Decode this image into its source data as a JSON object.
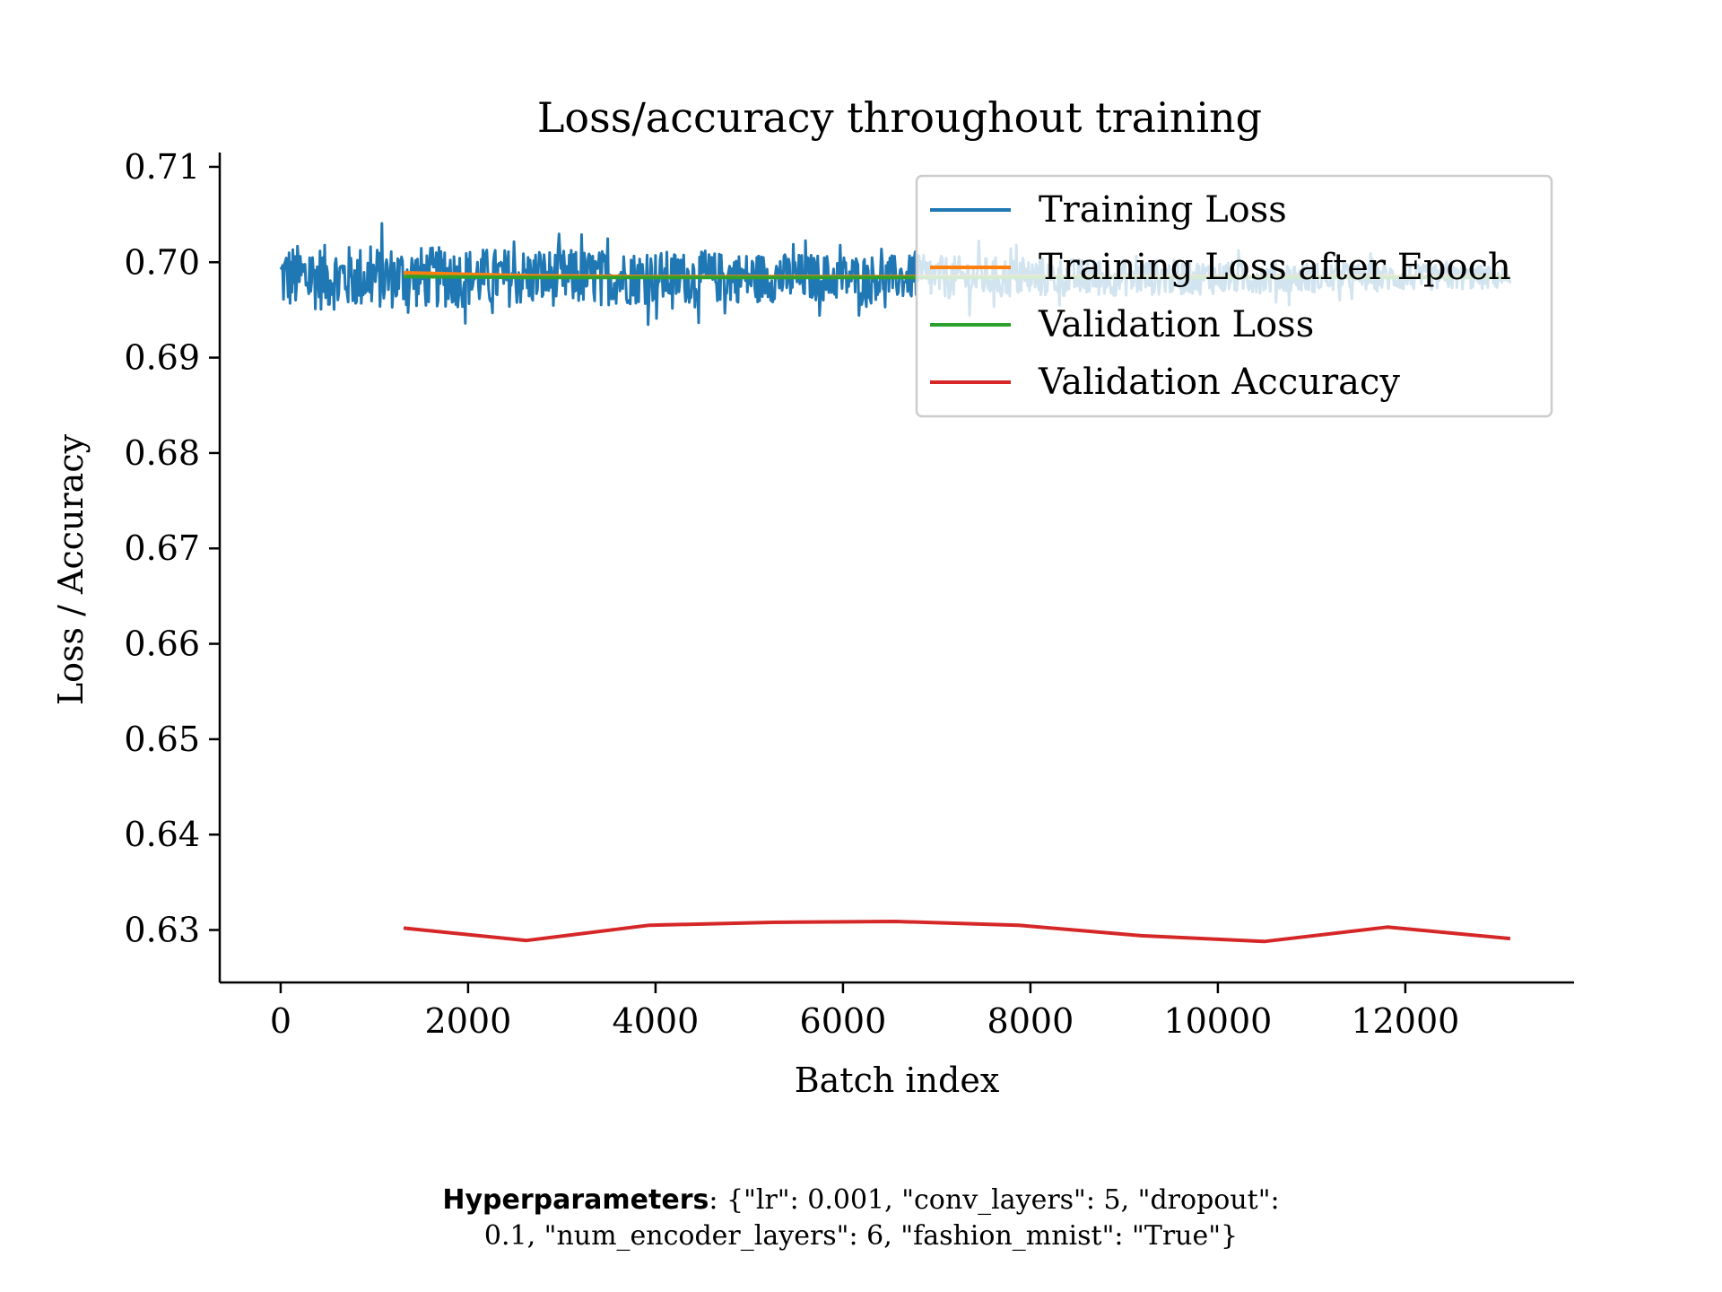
{
  "chart_data": {
    "type": "line",
    "title": "Loss/accuracy throughout training",
    "xlabel": "Batch index",
    "ylabel": "Loss / Accuracy",
    "xlim": [
      -650,
      13800
    ],
    "ylim": [
      0.6245,
      0.7115
    ],
    "xticks": [
      0,
      2000,
      4000,
      6000,
      8000,
      10000,
      12000
    ],
    "yticks": [
      0.63,
      0.64,
      0.65,
      0.66,
      0.67,
      0.68,
      0.69,
      0.7,
      0.71
    ],
    "ytick_labels": [
      "0.63",
      "0.64",
      "0.65",
      "0.66",
      "0.67",
      "0.68",
      "0.69",
      "0.70",
      "0.71"
    ],
    "grid": false,
    "legend_position": "top-right",
    "series": [
      {
        "name": "Training Loss",
        "color": "#1f77b4",
        "style": "noisy",
        "x_range": [
          0,
          13120
        ],
        "center": 0.6984,
        "amplitude_start": 0.0035,
        "amplitude_end": 0.0012,
        "peak_max": 0.7069,
        "peak_min": 0.6931
      },
      {
        "name": "Training Loss after Epoch",
        "color": "#ff7f0e",
        "x": [
          1312,
          2624,
          3936,
          5248,
          6560,
          7872,
          9184,
          10496,
          11808,
          13120
        ],
        "values": [
          0.6989,
          0.6986,
          0.6985,
          0.6985,
          0.6985,
          0.6985,
          0.6985,
          0.6985,
          0.6985,
          0.6985
        ]
      },
      {
        "name": "Validation Loss",
        "color": "#2ca02c",
        "x": [
          1312,
          2624,
          3936,
          5248,
          6560,
          7872,
          9184,
          10496,
          11808,
          13120
        ],
        "values": [
          0.6985,
          0.6984,
          0.6984,
          0.6984,
          0.6984,
          0.6984,
          0.6984,
          0.6984,
          0.6984,
          0.6984
        ]
      },
      {
        "name": "Validation Accuracy",
        "color": "#d62728",
        "x": [
          1312,
          2624,
          3936,
          5248,
          6560,
          7872,
          9184,
          10496,
          11808,
          13120
        ],
        "values": [
          0.6302,
          0.6289,
          0.6305,
          0.6308,
          0.6309,
          0.6305,
          0.6294,
          0.6288,
          0.6303,
          0.6291
        ]
      }
    ]
  },
  "caption": {
    "label": "Hyperparameters",
    "line1": ": {\"lr\": 0.001, \"conv_layers\": 5, \"dropout\":",
    "line2": "0.1, \"num_encoder_layers\": 6, \"fashion_mnist\": \"True\"}"
  }
}
